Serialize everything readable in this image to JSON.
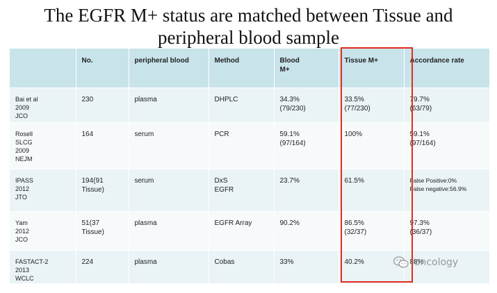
{
  "title_line1": "The EGFR M+ status are matched between Tissue and",
  "title_line2": "peripheral blood sample",
  "headers": [
    "",
    "No.",
    "peripheral blood",
    "Method",
    "Blood\nM+",
    "Tissue M+",
    "Accordance rate"
  ],
  "rows": [
    [
      "Bai et al\n2009\nJCO",
      "230",
      "plasma",
      "DHPLC",
      "34.3%\n(79/230)",
      "33.5%\n(77/230)",
      "79.7%\n(63/79)"
    ],
    [
      "Rosell\nSLCG\n2009\nNEJM",
      "164",
      "serum",
      "PCR",
      "59.1%\n(97/164)",
      "100%",
      "59.1%\n(97/164)"
    ],
    [
      "IPASS\n2012\nJTO",
      "194(91\nTissue)",
      "serum",
      "DxS\nEGFR",
      "23.7%",
      "61.5%",
      "False Positive:0%\nFalse negative:56.9%"
    ],
    [
      "Yam\n2012\nJCO",
      "51(37\nTissue)",
      "plasma",
      "EGFR Array",
      "90.2%",
      "86.5%\n(32/37)",
      "97.3%\n(36/37)"
    ],
    [
      "FASTACT-2\n2013\nWCLC",
      "224",
      "plasma",
      "Cobas",
      "33%",
      "40.2%",
      "88%"
    ]
  ],
  "highlight_color": "#e32b1c",
  "watermark": {
    "text": "ioncology",
    "icon": "wechat-logo-icon"
  }
}
